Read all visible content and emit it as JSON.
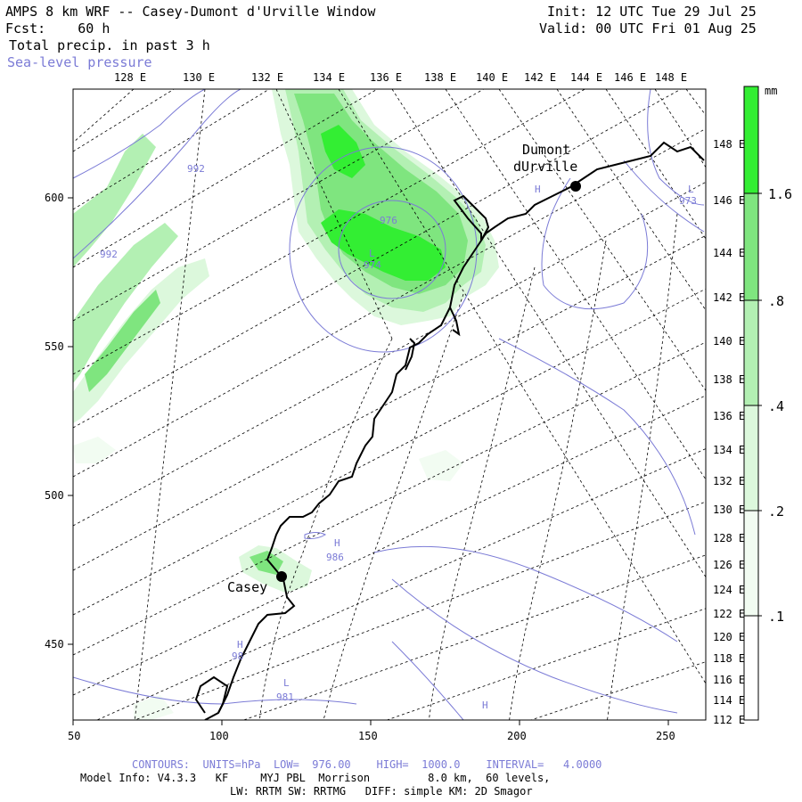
{
  "header": {
    "title": "AMPS 8 km WRF -- Casey-Dumont d'Urville Window",
    "fcst_label": "Fcst:",
    "fcst_value": "60 h",
    "field": "Total precip. in past 3 h",
    "overlay": "Sea-level pressure",
    "init": "Init: 12 UTC Tue 29 Jul 25",
    "valid": "Valid: 00 UTC Fri 01 Aug 25"
  },
  "top_lon_labels": [
    "128 E",
    "130 E",
    "132 E",
    "134 E",
    "136 E",
    "138 E",
    "140 E",
    "142 E",
    "144 E",
    "146 E",
    "148 E"
  ],
  "right_lon_labels": [
    "148 E",
    "146 E",
    "144 E",
    "142 E",
    "140 E",
    "138 E",
    "136 E",
    "134 E",
    "132 E",
    "130 E",
    "128 E",
    "126 E",
    "124 E",
    "122 E",
    "120 E",
    "118 E",
    "116 E",
    "114 E",
    "112 E"
  ],
  "x_axis": [
    "50",
    "100",
    "150",
    "200",
    "250"
  ],
  "y_axis": [
    "600",
    "550",
    "500",
    "450"
  ],
  "colorbar": {
    "unit": "mm",
    "labels": [
      "1.6",
      ".8",
      ".4",
      ".2",
      ".1"
    ],
    "colors": [
      "#33ee33",
      "#7fe57f",
      "#b3f0b3",
      "#dcf8dc",
      "#f2fcf2"
    ]
  },
  "stations": [
    {
      "name": "Casey"
    },
    {
      "name_line1": "Dumont",
      "name_line2": "dUrville"
    }
  ],
  "pressure_labels": [
    "992",
    "992",
    "976",
    "974",
    "L",
    "H",
    "973",
    "L",
    "986",
    "H",
    "981",
    "L",
    "98",
    "H",
    "H"
  ],
  "footer": {
    "contours": "CONTOURS:  UNITS=hPa  LOW=  976.00    HIGH=  1000.0    INTERVAL=   4.0000",
    "model_info": "Model Info: V4.3.3   KF     MYJ PBL  Morrison         8.0 km,  60 levels,",
    "physics": "LW: RRTM SW: RRTMG   DIFF: simple KM: 2D Smagor"
  },
  "colors": {
    "contour": "#7b7bd6",
    "coast": "#000000",
    "grid": "#000000"
  }
}
